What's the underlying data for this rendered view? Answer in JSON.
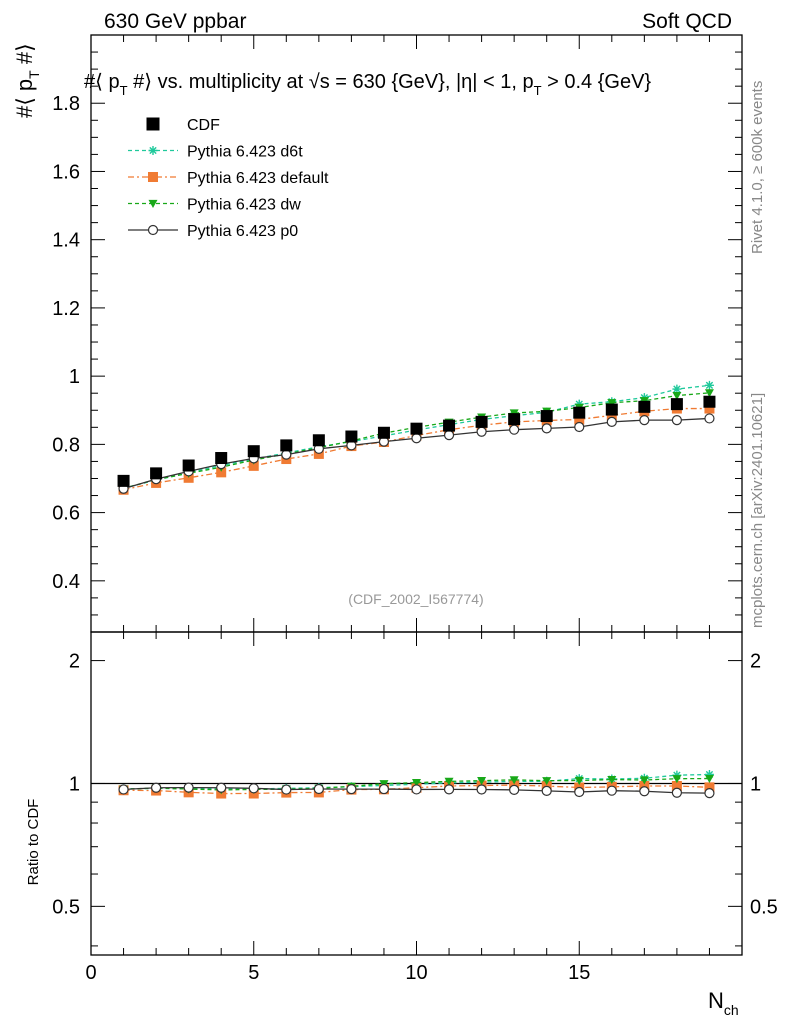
{
  "header": {
    "left": "630 GeV ppbar",
    "right": "Soft QCD",
    "plot_title": "#⟨ p_T #⟩ vs. multiplicity at √s = 630 {GeV}, |η| < 1, p_T > 0.4 {GeV}"
  },
  "side_labels": {
    "rivet": "Rivet 4.1.0, ≥ 600k events",
    "mcplots": "mcplots.cern.ch [arXiv:2401.10621]"
  },
  "chart_data": {
    "type": "line",
    "analysis_id": "(CDF_2002_I567774)",
    "ylabel_main": "#⟨ p_T #⟩",
    "ylabel_ratio": "Ratio to CDF",
    "xlabel": "N_ch",
    "xlim": [
      0,
      20
    ],
    "ylim_main": [
      0.25,
      2.0
    ],
    "ylim_ratio": [
      0.38,
      2.35
    ],
    "x_ticks": [
      0,
      5,
      10,
      15
    ],
    "y_ticks_main": [
      0.4,
      0.6,
      0.8,
      1.0,
      1.2,
      1.4,
      1.6,
      1.8
    ],
    "y_tick_labels_main": [
      "0.4",
      "0.6",
      "0.8",
      "1",
      "1.2",
      "1.4",
      "1.6",
      "1.8"
    ],
    "y_ticks_ratio": [
      0.5,
      1,
      2
    ],
    "y_tick_labels_ratio": [
      "0.5",
      "1",
      "2"
    ],
    "x": [
      1,
      2,
      3,
      4,
      5,
      6,
      7,
      8,
      9,
      10,
      11,
      12,
      13,
      14,
      15,
      16,
      17,
      18,
      19
    ],
    "reference": {
      "name": "CDF",
      "color": "#000000",
      "marker": "square",
      "values": [
        0.693,
        0.715,
        0.738,
        0.76,
        0.78,
        0.797,
        0.812,
        0.823,
        0.834,
        0.846,
        0.855,
        0.866,
        0.874,
        0.883,
        0.893,
        0.902,
        0.91,
        0.918,
        0.925
      ]
    },
    "series": [
      {
        "name": "Pythia 6.423 d6t",
        "color": "#1fc99b",
        "marker": "star",
        "dash": "4,3",
        "values": [
          0.672,
          0.695,
          0.717,
          0.738,
          0.757,
          0.775,
          0.793,
          0.808,
          0.825,
          0.842,
          0.858,
          0.873,
          0.884,
          0.894,
          0.918,
          0.925,
          0.937,
          0.962,
          0.973
        ]
      },
      {
        "name": "Pythia 6.423 default",
        "color": "#f07b33",
        "marker": "square",
        "dash": "6,3,2,3",
        "values": [
          0.667,
          0.687,
          0.702,
          0.718,
          0.737,
          0.757,
          0.772,
          0.795,
          0.807,
          0.826,
          0.843,
          0.856,
          0.866,
          0.87,
          0.873,
          0.885,
          0.897,
          0.905,
          0.905
        ]
      },
      {
        "name": "Pythia 6.423 dw",
        "color": "#18a818",
        "marker": "triangle-down",
        "dash": "4,3",
        "values": [
          0.671,
          0.697,
          0.715,
          0.733,
          0.754,
          0.772,
          0.79,
          0.81,
          0.833,
          0.85,
          0.865,
          0.88,
          0.892,
          0.897,
          0.908,
          0.922,
          0.928,
          0.943,
          0.951
        ]
      },
      {
        "name": "Pythia 6.423 p0",
        "color": "#333333",
        "marker": "circle-open",
        "dash": "",
        "values": [
          0.67,
          0.698,
          0.721,
          0.742,
          0.759,
          0.77,
          0.787,
          0.797,
          0.808,
          0.818,
          0.827,
          0.837,
          0.843,
          0.847,
          0.851,
          0.866,
          0.871,
          0.871,
          0.876
        ]
      }
    ]
  }
}
